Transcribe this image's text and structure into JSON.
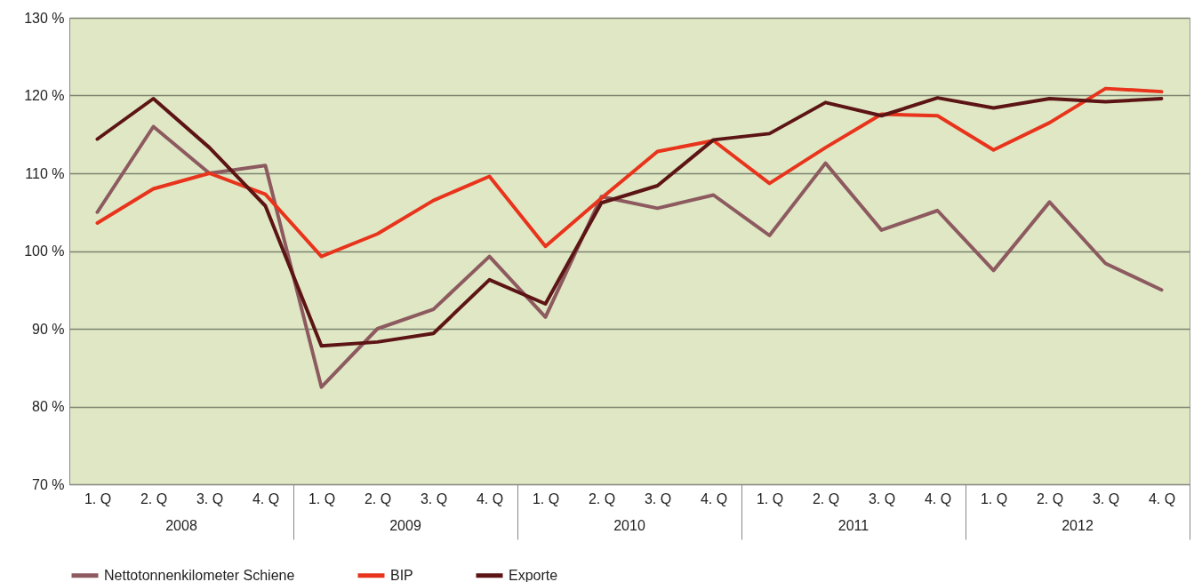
{
  "chart_data": {
    "type": "line",
    "categories": [
      "1. Q",
      "2. Q",
      "3. Q",
      "4. Q",
      "1. Q",
      "2. Q",
      "3. Q",
      "4. Q",
      "1. Q",
      "2. Q",
      "3. Q",
      "4. Q",
      "1. Q",
      "2. Q",
      "3. Q",
      "4. Q",
      "1. Q",
      "2. Q",
      "3. Q",
      "4. Q"
    ],
    "annotations": [
      "2008",
      "2009",
      "2010",
      "2011",
      "2012"
    ],
    "series": [
      {
        "name": "Nettotonnenkilometer Schiene",
        "color": "#8c5a5f",
        "values": [
          105,
          116,
          110,
          111,
          82.5,
          90,
          92.5,
          99.3,
          91.5,
          107,
          105.5,
          107.2,
          102,
          111.3,
          102.7,
          105.2,
          97.5,
          106.3,
          98.4,
          95
        ]
      },
      {
        "name": "BIP",
        "color": "#e8341c",
        "values": [
          103.6,
          108,
          110,
          107.3,
          99.3,
          102.2,
          106.5,
          109.6,
          100.6,
          106.8,
          112.8,
          114.2,
          108.7,
          113.3,
          117.6,
          117.4,
          113,
          116.5,
          120.9,
          120.5
        ]
      },
      {
        "name": "Exporte",
        "color": "#5c1414",
        "values": [
          114.4,
          119.6,
          113.3,
          105.8,
          87.8,
          88.3,
          89.4,
          96.3,
          93.2,
          106.2,
          108.4,
          114.3,
          115.1,
          119.1,
          117.4,
          119.7,
          118.4,
          119.6,
          119.2,
          119.6
        ]
      }
    ],
    "ylim": [
      70,
      130
    ],
    "yticks": [
      {
        "value": 70,
        "label": "70 %"
      },
      {
        "value": 80,
        "label": "80 %"
      },
      {
        "value": 90,
        "label": "90 %"
      },
      {
        "value": 100,
        "label": "100 %"
      },
      {
        "value": 110,
        "label": "110 %"
      },
      {
        "value": 120,
        "label": "120 %"
      },
      {
        "value": 130,
        "label": "130 %"
      }
    ],
    "grid": "y",
    "legend": "bottom",
    "line_style": "solid"
  }
}
